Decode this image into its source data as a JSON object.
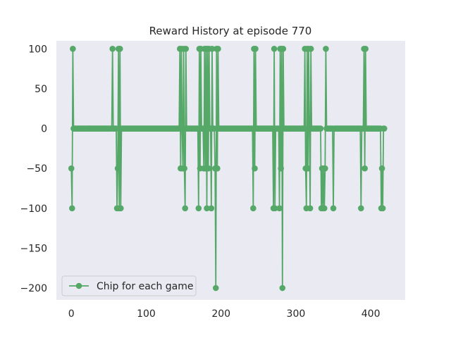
{
  "chart_data": {
    "type": "line",
    "title": "Reward History at episode 770",
    "xlabel": "",
    "ylabel": "",
    "xlim": [
      -20,
      446
    ],
    "ylim": [
      -215,
      110
    ],
    "grid": false,
    "legend_position": "lower-left",
    "x_ticks": [
      0,
      100,
      200,
      300,
      400
    ],
    "y_ticks": [
      100,
      50,
      0,
      -50,
      -100,
      -150,
      -200
    ],
    "x_tick_labels": [
      "0",
      "100",
      "200",
      "300",
      "400"
    ],
    "y_tick_labels": [
      "100",
      "50",
      "0",
      "−50",
      "−100",
      "−150",
      "−200"
    ],
    "series": [
      {
        "name": "Chip for each game",
        "color": "#55a868",
        "marker": "circle",
        "y": [
          -50,
          -100,
          100,
          0,
          0,
          0,
          0,
          0,
          0,
          0,
          0,
          0,
          0,
          0,
          0,
          0,
          0,
          0,
          0,
          0,
          0,
          0,
          0,
          0,
          0,
          0,
          0,
          0,
          0,
          0,
          0,
          0,
          0,
          0,
          0,
          0,
          0,
          0,
          0,
          0,
          0,
          0,
          0,
          0,
          0,
          0,
          0,
          0,
          0,
          0,
          0,
          0,
          0,
          0,
          0,
          100,
          0,
          0,
          0,
          0,
          0,
          -100,
          -50,
          100,
          -100,
          100,
          -100,
          0,
          0,
          0,
          0,
          0,
          0,
          0,
          0,
          0,
          0,
          0,
          0,
          0,
          0,
          0,
          0,
          0,
          0,
          0,
          0,
          0,
          0,
          0,
          0,
          0,
          0,
          0,
          0,
          0,
          0,
          0,
          0,
          0,
          0,
          0,
          0,
          0,
          0,
          0,
          0,
          0,
          0,
          0,
          0,
          0,
          0,
          0,
          0,
          0,
          0,
          0,
          0,
          0,
          0,
          0,
          0,
          0,
          0,
          0,
          0,
          0,
          0,
          0,
          0,
          0,
          0,
          0,
          0,
          0,
          0,
          0,
          0,
          0,
          0,
          0,
          0,
          0,
          0,
          100,
          -50,
          100,
          0,
          -50,
          100,
          -50,
          -100,
          100,
          0,
          0,
          0,
          0,
          0,
          0,
          0,
          0,
          0,
          0,
          0,
          0,
          0,
          0,
          0,
          0,
          -100,
          100,
          -50,
          100,
          0,
          0,
          0,
          -50,
          100,
          -50,
          100,
          -100,
          100,
          -50,
          100,
          0,
          0,
          -100,
          100,
          0,
          0,
          0,
          -50,
          -200,
          100,
          -50,
          100,
          0,
          0,
          0,
          0,
          0,
          0,
          0,
          0,
          0,
          0,
          0,
          0,
          0,
          0,
          0,
          0,
          0,
          0,
          0,
          0,
          0,
          0,
          0,
          0,
          0,
          0,
          0,
          0,
          0,
          0,
          0,
          0,
          0,
          0,
          0,
          0,
          0,
          0,
          0,
          0,
          0,
          0,
          0,
          0,
          0,
          0,
          -100,
          100,
          -50,
          100,
          0,
          0,
          0,
          0,
          0,
          0,
          0,
          0,
          0,
          0,
          0,
          0,
          0,
          0,
          0,
          0,
          0,
          0,
          0,
          0,
          0,
          0,
          0,
          -100,
          100,
          -100,
          0,
          0,
          0,
          0,
          0,
          -100,
          100,
          -50,
          100,
          -200,
          100,
          0,
          0,
          0,
          0,
          0,
          0,
          0,
          0,
          0,
          0,
          0,
          0,
          0,
          0,
          0,
          0,
          0,
          0,
          0,
          0,
          0,
          0,
          0,
          0,
          0,
          0,
          0,
          0,
          100,
          -50,
          -100,
          100,
          -50,
          100,
          0,
          -100,
          100,
          0,
          0,
          0,
          0,
          0,
          0,
          0,
          0,
          0,
          0,
          0,
          0,
          0,
          -100,
          -50,
          -100,
          -50,
          -100,
          -50,
          100,
          0,
          0,
          0,
          0,
          0,
          0,
          0,
          0,
          0,
          -100,
          0,
          0,
          0,
          0,
          0,
          0,
          0,
          0,
          0,
          0,
          0,
          0,
          0,
          0,
          0,
          0,
          0,
          0,
          0,
          0,
          0,
          0,
          0,
          0,
          0,
          0,
          0,
          0,
          0,
          0,
          0,
          0,
          0,
          0,
          0,
          0,
          -100,
          0,
          0,
          0,
          100,
          -50,
          100,
          0,
          0,
          0,
          0,
          0,
          0,
          0,
          0,
          0,
          0,
          0,
          0,
          0,
          0,
          0,
          0,
          0,
          0,
          0,
          0,
          -100,
          -50,
          -100,
          0,
          0
        ]
      }
    ]
  }
}
